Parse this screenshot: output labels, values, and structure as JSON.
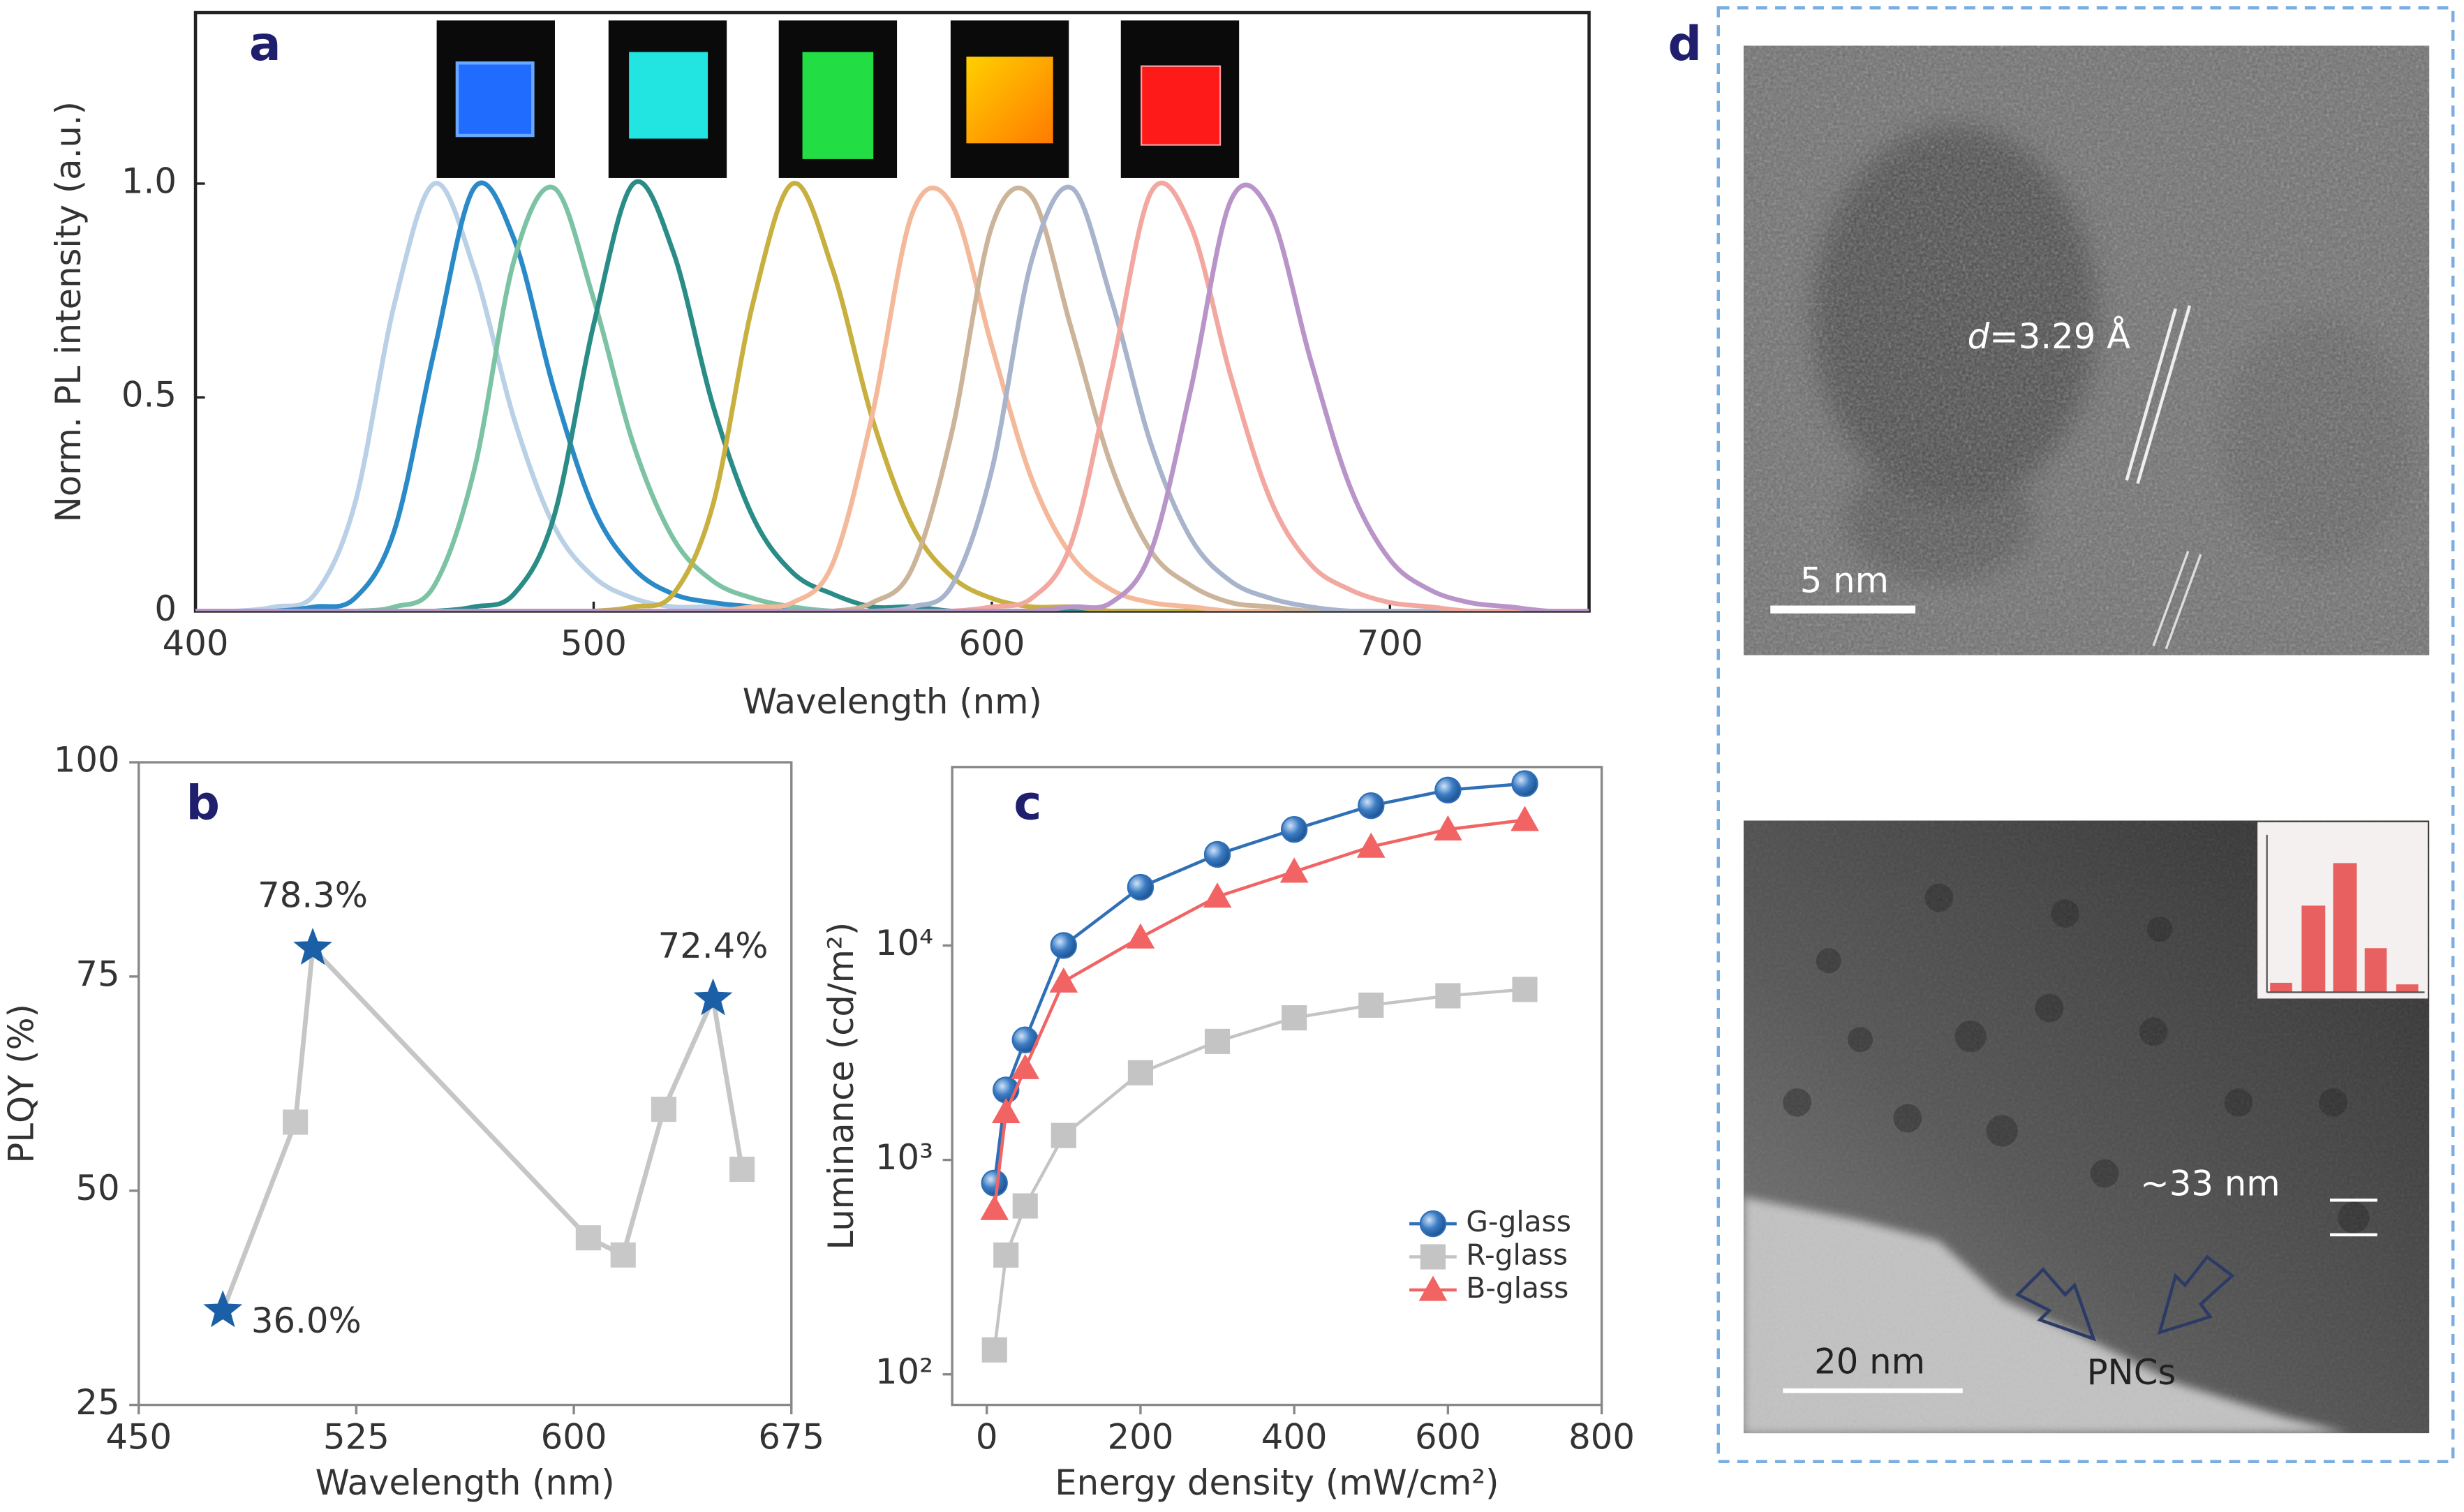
{
  "chart_data": [
    {
      "type": "line",
      "panel_label": "a",
      "smooth": true,
      "x": [
        400,
        410,
        420,
        430,
        440,
        450,
        460,
        470,
        480,
        490,
        500,
        510,
        520,
        530,
        540,
        550,
        560,
        570,
        580,
        590,
        600,
        610,
        620,
        630,
        640,
        650,
        660,
        670,
        680,
        690,
        700,
        710,
        720,
        730,
        740,
        750
      ],
      "xlim": [
        400,
        750
      ],
      "xticks": [
        400,
        500,
        600,
        700
      ],
      "ylim": [
        0,
        1.4
      ],
      "yticks": [
        0,
        0.5,
        {
          "value": 1,
          "label": "1.0"
        }
      ],
      "x_label": "Wavelength (nm)",
      "y_label": "Norm. PL intensity (a.u.)",
      "series": [
        {
          "color": "#b9d0e6",
          "values": [
            0,
            0,
            0.01,
            0.04,
            0.25,
            0.72,
            1,
            0.8,
            0.45,
            0.2,
            0.08,
            0.03,
            0.01,
            0.01,
            0,
            0,
            0,
            0,
            0,
            0,
            0,
            0,
            0,
            0,
            0,
            0,
            0,
            0,
            0,
            0,
            0,
            0,
            0,
            0,
            0,
            0
          ]
        },
        {
          "color": "#2a8ac8",
          "values": [
            0,
            0,
            0,
            0.01,
            0.03,
            0.19,
            0.61,
            0.99,
            0.87,
            0.52,
            0.24,
            0.1,
            0.04,
            0.02,
            0.01,
            0,
            0,
            0,
            0,
            0,
            0,
            0,
            0,
            0,
            0,
            0,
            0,
            0,
            0,
            0,
            0,
            0,
            0,
            0,
            0,
            0
          ]
        },
        {
          "color": "#7cc3a4",
          "values": [
            0,
            0,
            0,
            0,
            0,
            0.01,
            0.06,
            0.33,
            0.82,
            0.99,
            0.73,
            0.39,
            0.17,
            0.07,
            0.03,
            0.01,
            0,
            0,
            0,
            0,
            0,
            0,
            0,
            0,
            0,
            0,
            0,
            0,
            0,
            0,
            0,
            0,
            0,
            0,
            0,
            0
          ]
        },
        {
          "color": "#2a8c86",
          "values": [
            0,
            0,
            0,
            0,
            0,
            0,
            0,
            0.01,
            0.04,
            0.22,
            0.67,
            1,
            0.84,
            0.48,
            0.22,
            0.09,
            0.04,
            0.01,
            0.01,
            0,
            0,
            0,
            0,
            0,
            0,
            0,
            0,
            0,
            0,
            0,
            0,
            0,
            0,
            0,
            0,
            0
          ]
        },
        {
          "color": "#c8b040",
          "values": [
            0,
            0,
            0,
            0,
            0,
            0,
            0,
            0,
            0,
            0,
            0,
            0.01,
            0.04,
            0.25,
            0.72,
            1,
            0.8,
            0.45,
            0.2,
            0.08,
            0.03,
            0.01,
            0.01,
            0,
            0,
            0,
            0,
            0,
            0,
            0,
            0,
            0,
            0,
            0,
            0,
            0
          ]
        },
        {
          "color": "#f4b89a",
          "values": [
            0,
            0,
            0,
            0,
            0,
            0,
            0,
            0,
            0,
            0,
            0,
            0,
            0,
            0,
            0.01,
            0.02,
            0.11,
            0.46,
            0.93,
            0.95,
            0.62,
            0.31,
            0.13,
            0.05,
            0.02,
            0.01,
            0,
            0,
            0,
            0,
            0,
            0,
            0,
            0,
            0,
            0
          ]
        },
        {
          "color": "#cbb49a",
          "values": [
            0,
            0,
            0,
            0,
            0,
            0,
            0,
            0,
            0,
            0,
            0,
            0,
            0,
            0,
            0,
            0,
            0,
            0.02,
            0.1,
            0.42,
            0.9,
            0.97,
            0.66,
            0.34,
            0.14,
            0.06,
            0.02,
            0.01,
            0,
            0,
            0,
            0,
            0,
            0,
            0,
            0
          ]
        },
        {
          "color": "#a8b4cc",
          "values": [
            0,
            0,
            0,
            0,
            0,
            0,
            0,
            0,
            0,
            0,
            0,
            0,
            0,
            0,
            0,
            0,
            0,
            0,
            0.01,
            0.06,
            0.33,
            0.82,
            0.99,
            0.73,
            0.39,
            0.17,
            0.07,
            0.03,
            0.01,
            0,
            0,
            0,
            0,
            0,
            0,
            0
          ]
        },
        {
          "color": "#f2a8a0",
          "values": [
            0,
            0,
            0,
            0,
            0,
            0,
            0,
            0,
            0,
            0,
            0,
            0,
            0,
            0,
            0,
            0,
            0,
            0,
            0,
            0,
            0.01,
            0.03,
            0.16,
            0.56,
            0.98,
            0.9,
            0.55,
            0.26,
            0.11,
            0.05,
            0.02,
            0.01,
            0,
            0,
            0,
            0
          ]
        },
        {
          "color": "#b894c8",
          "values": [
            0,
            0,
            0,
            0,
            0,
            0,
            0,
            0,
            0,
            0,
            0,
            0,
            0,
            0,
            0,
            0,
            0,
            0,
            0,
            0,
            0,
            0,
            0.01,
            0.02,
            0.14,
            0.52,
            0.96,
            0.93,
            0.59,
            0.29,
            0.12,
            0.05,
            0.02,
            0.01,
            0,
            0
          ]
        }
      ]
    },
    {
      "type": "line",
      "panel_label": "b",
      "x": [
        479,
        504,
        510,
        605,
        617,
        631,
        648,
        658
      ],
      "values": [
        36,
        58,
        78.3,
        44.5,
        42.5,
        59.5,
        72.4,
        52.5
      ],
      "value_labels": [
        "36.0%",
        null,
        "78.3%",
        null,
        null,
        null,
        "72.4%",
        null
      ],
      "markers": [
        "star",
        "square",
        "star",
        "square",
        "square",
        "square",
        "star",
        "square"
      ],
      "line_color": "#c6c6c6",
      "marker_colors": {
        "star": "#1b5fa6",
        "square": "#c8c8c8"
      },
      "xlim": [
        450,
        675
      ],
      "xticks": [
        450,
        525,
        600,
        675
      ],
      "ylim": [
        25,
        100
      ],
      "yticks": [
        25,
        50,
        75,
        100
      ],
      "x_label": "Wavelength (nm)",
      "y_label": "PLQY (%)"
    },
    {
      "type": "line",
      "panel_label": "c",
      "log_y": true,
      "legend": "lower right",
      "x": [
        10,
        25,
        50,
        100,
        200,
        300,
        400,
        500,
        600,
        700
      ],
      "xlim": [
        -45,
        800
      ],
      "xticks": [
        0,
        200,
        400,
        600,
        800
      ],
      "ylim": [
        72,
        68000
      ],
      "yticks": [
        {
          "value": 100,
          "label": "10²"
        },
        {
          "value": 1000,
          "label": "10³"
        },
        {
          "value": 10000,
          "label": "10⁴"
        }
      ],
      "x_label": "Energy density (mW/cm²)",
      "y_label": "Luminance (cd/m²)",
      "series": [
        {
          "name": "G-glass",
          "color": "#2f6fb6",
          "marker": "circle",
          "values": [
            780,
            2120,
            3630,
            10000,
            18700,
            26600,
            34800,
            44900,
            53100,
            56900
          ]
        },
        {
          "name": "R-glass",
          "color": "#c4c4c4",
          "marker": "square",
          "values": [
            130,
            360,
            610,
            1300,
            2550,
            3570,
            4600,
            5270,
            5830,
            6240
          ]
        },
        {
          "name": "B-glass",
          "color": "#f26464",
          "marker": "triangle",
          "values": [
            590,
            1670,
            2680,
            6790,
            10900,
            16900,
            22100,
            28900,
            34800,
            38500
          ]
        }
      ]
    }
  ],
  "panel_d": {
    "label": "d",
    "hrtem": {
      "spacing_symbol": "d",
      "spacing_value": "=3.29 Å",
      "scale_bar": "5 nm"
    },
    "tem": {
      "scale_bar": "20 nm",
      "size_note": "~33 nm",
      "arrow_label": "PNCs"
    }
  }
}
